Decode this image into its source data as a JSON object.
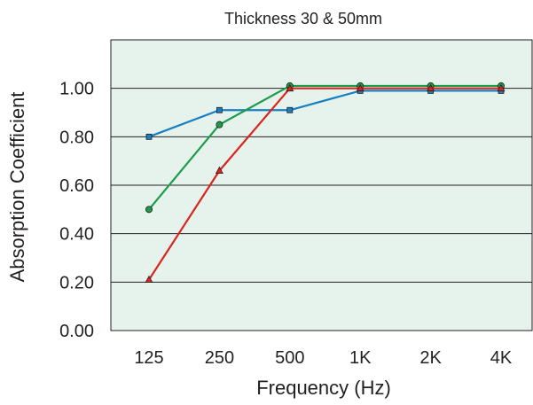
{
  "chart_data": {
    "type": "line",
    "title": "Thickness 30 & 50mm",
    "xlabel": "Frequency (Hz)",
    "ylabel": "Absorption Coefficient",
    "categories": [
      "125",
      "250",
      "500",
      "1K",
      "2K",
      "4K"
    ],
    "ylim": [
      0,
      1.2
    ],
    "yticks": [
      "0.00",
      "0.20",
      "0.40",
      "0.60",
      "0.80",
      "1.00"
    ],
    "grid": true,
    "legend": "none",
    "plot_background": "#e6f3ec",
    "series": [
      {
        "color": "#1a7fc1",
        "marker": "square",
        "values": [
          0.8,
          0.91,
          0.91,
          0.99,
          0.99,
          0.99
        ]
      },
      {
        "color": "#1d9a4a",
        "marker": "circle",
        "values": [
          0.5,
          0.85,
          1.01,
          1.01,
          1.01,
          1.01
        ]
      },
      {
        "color": "#d8261f",
        "marker": "triangle",
        "values": [
          0.21,
          0.66,
          1.0,
          1.0,
          1.0,
          1.0
        ]
      }
    ]
  }
}
